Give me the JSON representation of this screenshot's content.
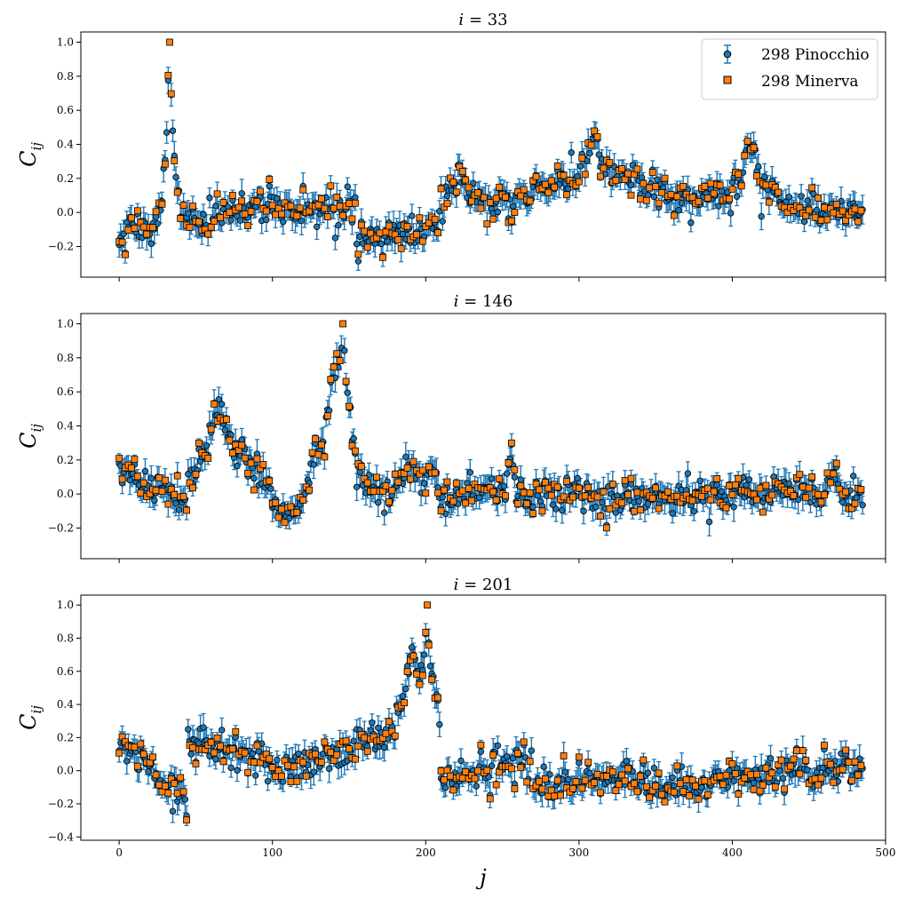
{
  "chart_data": {
    "type": "scatter",
    "xlabel": "j",
    "ylabel": "C_ij",
    "xlim": [
      -25,
      500
    ],
    "xticks": [
      0,
      100,
      200,
      300,
      400,
      500
    ],
    "xtick_labels": [
      "0",
      "100",
      "200",
      "300",
      "400",
      "500"
    ],
    "colors": {
      "pinocchio_marker": "#1f77b4",
      "minerva_marker": "#ff7f0e",
      "errorbar": "#1f77b4",
      "edge": "#000000"
    },
    "legend": {
      "position": "top-right",
      "entries": [
        "298 Pinocchio",
        "298 Minerva"
      ]
    },
    "series_names": [
      "298 Pinocchio",
      "298 Minerva"
    ],
    "panels": [
      {
        "title_prefix": "i",
        "title_index": "33",
        "ylim": [
          -0.38,
          1.06
        ],
        "yticks": [
          -0.2,
          0.0,
          0.2,
          0.4,
          0.6,
          0.8,
          1.0
        ],
        "ytick_labels": [
          "−0.2",
          "0.0",
          "0.2",
          "0.4",
          "0.6",
          "0.8",
          "1.0"
        ],
        "peak_j": 33,
        "segments": [
          {
            "j": [
              0,
              45
            ],
            "base": [
              -0.18,
              -0.08
            ]
          },
          {
            "j": [
              45,
              155
            ],
            "base": [
              -0.08,
              0.0,
              0.04,
              0.0,
              0.05
            ]
          },
          {
            "j": [
              155,
              210
            ],
            "base": [
              -0.16,
              -0.12,
              -0.08
            ]
          },
          {
            "j": [
              210,
              260
            ],
            "base": [
              0.12,
              0.05,
              0.0
            ]
          },
          {
            "j": [
              260,
              300
            ],
            "base": [
              0.1,
              0.15,
              0.2
            ]
          },
          {
            "j": [
              300,
              340
            ],
            "base": [
              0.25,
              0.18
            ]
          },
          {
            "j": [
              340,
              400
            ],
            "base": [
              0.15,
              0.08,
              0.1
            ]
          },
          {
            "j": [
              400,
              430
            ],
            "base": [
              0.2,
              0.15
            ]
          },
          {
            "j": [
              430,
              485
            ],
            "base": [
              0.05,
              -0.02,
              0.0
            ]
          }
        ],
        "bumps": [
          {
            "j": 10,
            "h": 0.1,
            "w": 6
          },
          {
            "j": 222,
            "h": 0.15,
            "w": 4
          },
          {
            "j": 310,
            "h": 0.15,
            "w": 6
          },
          {
            "j": 412,
            "h": 0.2,
            "w": 4
          }
        ]
      },
      {
        "title_prefix": "i",
        "title_index": "146",
        "ylim": [
          -0.38,
          1.06
        ],
        "yticks": [
          -0.2,
          0.0,
          0.2,
          0.4,
          0.6,
          0.8,
          1.0
        ],
        "ytick_labels": [
          "−0.2",
          "0.0",
          "0.2",
          "0.4",
          "0.6",
          "0.8",
          "1.0"
        ],
        "peak_j": 146,
        "segments": [
          {
            "j": [
              0,
              45
            ],
            "base": [
              0.12,
              0.05,
              -0.06
            ]
          },
          {
            "j": [
              45,
              100
            ],
            "base": [
              0.1,
              0.25,
              0.2,
              0.05
            ]
          },
          {
            "j": [
              100,
              125
            ],
            "base": [
              -0.05,
              -0.12,
              0.05
            ]
          },
          {
            "j": [
              125,
              155
            ],
            "base": [
              0.2,
              0.3,
              0.25
            ]
          },
          {
            "j": [
              155,
              210
            ],
            "base": [
              0.1,
              0.0,
              0.15,
              -0.05
            ]
          },
          {
            "j": [
              210,
              270
            ],
            "base": [
              -0.05,
              0.05,
              0.0
            ]
          },
          {
            "j": [
              270,
              485
            ],
            "base": [
              0.0,
              -0.03,
              0.0,
              0.02,
              0.0
            ]
          }
        ],
        "bumps": [
          {
            "j": 65,
            "h": 0.22,
            "w": 8
          },
          {
            "j": 140,
            "h": 0.35,
            "w": 4
          },
          {
            "j": 205,
            "h": 0.15,
            "w": 3
          },
          {
            "j": 256,
            "h": 0.25,
            "w": 1.5
          },
          {
            "j": 466,
            "h": 0.12,
            "w": 3
          }
        ]
      },
      {
        "title_prefix": "i",
        "title_index": "201",
        "ylim": [
          -0.42,
          1.06
        ],
        "yticks": [
          -0.4,
          -0.2,
          0.0,
          0.2,
          0.4,
          0.6,
          0.8,
          1.0
        ],
        "ytick_labels": [
          "−0.4",
          "−0.2",
          "0.0",
          "0.2",
          "0.4",
          "0.6",
          "0.8",
          "1.0"
        ],
        "peak_j": 201,
        "segments": [
          {
            "j": [
              0,
              45
            ],
            "base": [
              0.16,
              0.12,
              -0.1,
              -0.15
            ]
          },
          {
            "j": [
              45,
              100
            ],
            "base": [
              0.2,
              0.12,
              0.05
            ]
          },
          {
            "j": [
              100,
              155
            ],
            "base": [
              0.0,
              0.05,
              0.12
            ]
          },
          {
            "j": [
              155,
              210
            ],
            "base": [
              0.2,
              0.25,
              0.3
            ]
          },
          {
            "j": [
              210,
              270
            ],
            "base": [
              -0.08,
              0.0,
              0.05
            ]
          },
          {
            "j": [
              270,
              485
            ],
            "base": [
              -0.08,
              -0.05,
              -0.08,
              0.0,
              0.02
            ]
          }
        ],
        "bumps": [
          {
            "j": 192,
            "h": 0.35,
            "w": 4
          },
          {
            "j": 186,
            "h": 0.2,
            "w": 5
          }
        ]
      }
    ]
  }
}
